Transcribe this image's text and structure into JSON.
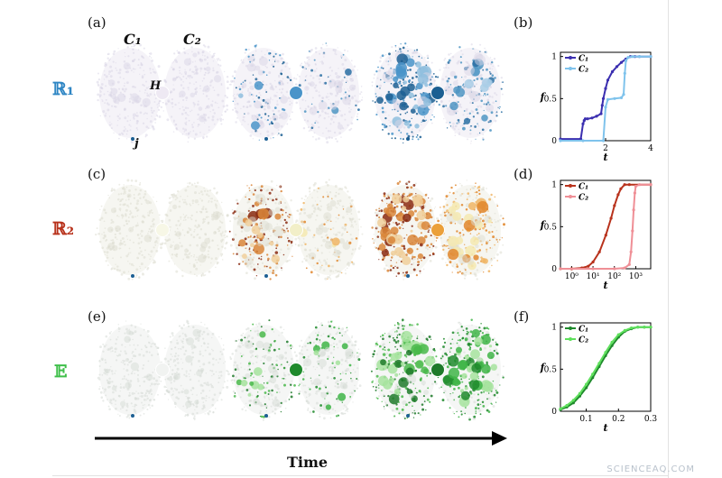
{
  "labels": {
    "panel_a": "(a)",
    "panel_b": "(b)",
    "panel_c": "(c)",
    "panel_d": "(d)",
    "panel_e": "(e)",
    "panel_f": "(f)",
    "row_r1": "ℝ₁",
    "row_r2": "ℝ₂",
    "row_e": "𝔼",
    "cluster_1": "C₁",
    "cluster_2": "C₂",
    "hub": "H",
    "node": "j",
    "time": "Time",
    "watermark": "SCIENCEAQ.COM"
  },
  "colors": {
    "r1_accent": "#2f86c4",
    "r2_accent": "#b8321c",
    "e_accent": "#3fbf4a",
    "r1_dark": "#1c5f93",
    "r2_dark": "#8a2a10",
    "e_dark": "#1f8a2c"
  },
  "rows": [
    {
      "name": "R1",
      "snapshots": [
        {
          "c1_fill": 0.0,
          "c2_fill": 0.0,
          "hub_color": "#eee9f3"
        },
        {
          "c1_fill": 0.35,
          "c2_fill": 0.15,
          "hub_color": "#4a94c9"
        },
        {
          "c1_fill": 0.9,
          "c2_fill": 0.55,
          "hub_color": "#1b5f92"
        }
      ]
    },
    {
      "name": "R2",
      "snapshots": [
        {
          "c1_fill": 0.0,
          "c2_fill": 0.0,
          "hub_color": "#f7f7e6"
        },
        {
          "c1_fill": 0.6,
          "c2_fill": 0.2,
          "hub_color": "#f2efc8"
        },
        {
          "c1_fill": 0.95,
          "c2_fill": 0.7,
          "hub_color": "#eba03a"
        }
      ]
    },
    {
      "name": "E",
      "snapshots": [
        {
          "c1_fill": 0.0,
          "c2_fill": 0.0,
          "hub_color": "#f1f3f1"
        },
        {
          "c1_fill": 0.35,
          "c2_fill": 0.3,
          "hub_color": "#1f8a2c"
        },
        {
          "c1_fill": 0.95,
          "c2_fill": 0.9,
          "hub_color": "#1f7a2a"
        }
      ]
    }
  ],
  "chart_data": [
    {
      "type": "line",
      "panel": "(b)",
      "xlabel": "t",
      "ylabel": "f",
      "xlim": [
        0,
        4
      ],
      "ylim": [
        0,
        1.05
      ],
      "xticks": [
        "2",
        "4"
      ],
      "yticks": [
        "0",
        "0.5",
        "1"
      ],
      "xtick_values": [
        2,
        4
      ],
      "ytick_values": [
        0,
        0.5,
        1
      ],
      "legend": "top-left",
      "series": [
        {
          "name": "C₁",
          "color": "#3b2fb0",
          "x": [
            0,
            0.9,
            1.0,
            1.05,
            1.1,
            1.2,
            1.4,
            1.6,
            1.8,
            1.85,
            1.9,
            2.0,
            2.1,
            2.3,
            2.5,
            2.7,
            2.9,
            3.1,
            3.3,
            3.5,
            4.0
          ],
          "y": [
            0.02,
            0.02,
            0.2,
            0.24,
            0.26,
            0.26,
            0.27,
            0.29,
            0.32,
            0.42,
            0.5,
            0.62,
            0.72,
            0.82,
            0.88,
            0.93,
            0.97,
            1.0,
            1.0,
            1.0,
            1.0
          ]
        },
        {
          "name": "C₂",
          "color": "#7fc3ec",
          "x": [
            0,
            1.0,
            1.9,
            2.0,
            2.1,
            2.4,
            2.7,
            2.8,
            2.85,
            2.9,
            3.0,
            3.2,
            3.5,
            4.0
          ],
          "y": [
            0.0,
            0.0,
            0.0,
            0.4,
            0.49,
            0.5,
            0.51,
            0.55,
            0.8,
            0.95,
            0.99,
            1.0,
            1.0,
            1.0
          ]
        }
      ]
    },
    {
      "type": "line",
      "panel": "(d)",
      "xlabel": "t",
      "ylabel": "f",
      "xscale": "log",
      "xlim": [
        0.3,
        5000
      ],
      "ylim": [
        0,
        1.05
      ],
      "xticks": [
        "10⁰",
        "10¹",
        "10²",
        "10³"
      ],
      "yticks": [
        "0",
        "0.5",
        "1"
      ],
      "xtick_values": [
        1,
        10,
        100,
        1000
      ],
      "ytick_values": [
        0,
        0.5,
        1
      ],
      "legend": "top-left",
      "series": [
        {
          "name": "C₁",
          "color": "#b8321c",
          "x": [
            0.3,
            1,
            3,
            6,
            10,
            20,
            40,
            70,
            100,
            150,
            200,
            300,
            500,
            5000
          ],
          "y": [
            0.0,
            0.0,
            0.01,
            0.03,
            0.08,
            0.2,
            0.4,
            0.6,
            0.75,
            0.88,
            0.95,
            1.0,
            1.0,
            1.0
          ]
        },
        {
          "name": "C₂",
          "color": "#ef8f96",
          "x": [
            0.3,
            10,
            100,
            300,
            500,
            600,
            700,
            800,
            900,
            1000,
            1500,
            5000
          ],
          "y": [
            0.0,
            0.0,
            0.0,
            0.01,
            0.05,
            0.2,
            0.45,
            0.7,
            0.9,
            0.98,
            1.0,
            1.0
          ]
        }
      ]
    },
    {
      "type": "line",
      "panel": "(f)",
      "xlabel": "t",
      "ylabel": "f",
      "xlim": [
        0.02,
        0.3
      ],
      "ylim": [
        0,
        1.05
      ],
      "xticks": [
        "0.1",
        "0.2",
        "0.3"
      ],
      "yticks": [
        "0",
        "0.5",
        "1"
      ],
      "xtick_values": [
        0.1,
        0.2,
        0.3
      ],
      "ytick_values": [
        0,
        0.5,
        1
      ],
      "legend": "top-left",
      "series": [
        {
          "name": "C₁",
          "color": "#1f8a2c",
          "x": [
            0.02,
            0.04,
            0.06,
            0.08,
            0.1,
            0.12,
            0.14,
            0.16,
            0.18,
            0.2,
            0.22,
            0.24,
            0.26,
            0.28,
            0.3
          ],
          "y": [
            0.02,
            0.05,
            0.1,
            0.18,
            0.28,
            0.4,
            0.53,
            0.66,
            0.78,
            0.88,
            0.95,
            0.98,
            1.0,
            1.0,
            1.0
          ]
        },
        {
          "name": "C₂",
          "color": "#5ee05c",
          "x": [
            0.02,
            0.04,
            0.06,
            0.08,
            0.1,
            0.12,
            0.14,
            0.16,
            0.18,
            0.2,
            0.22,
            0.24,
            0.26,
            0.28,
            0.3
          ],
          "y": [
            0.03,
            0.07,
            0.13,
            0.21,
            0.32,
            0.44,
            0.57,
            0.7,
            0.82,
            0.91,
            0.96,
            0.99,
            1.0,
            1.0,
            1.0
          ]
        }
      ]
    }
  ]
}
